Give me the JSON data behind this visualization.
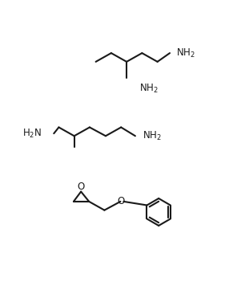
{
  "background_color": "#ffffff",
  "line_color": "#1a1a1a",
  "text_color": "#1a1a1a",
  "line_width": 1.5,
  "font_size": 8.5,
  "fig_width": 2.86,
  "fig_height": 3.71,
  "dpi": 100
}
